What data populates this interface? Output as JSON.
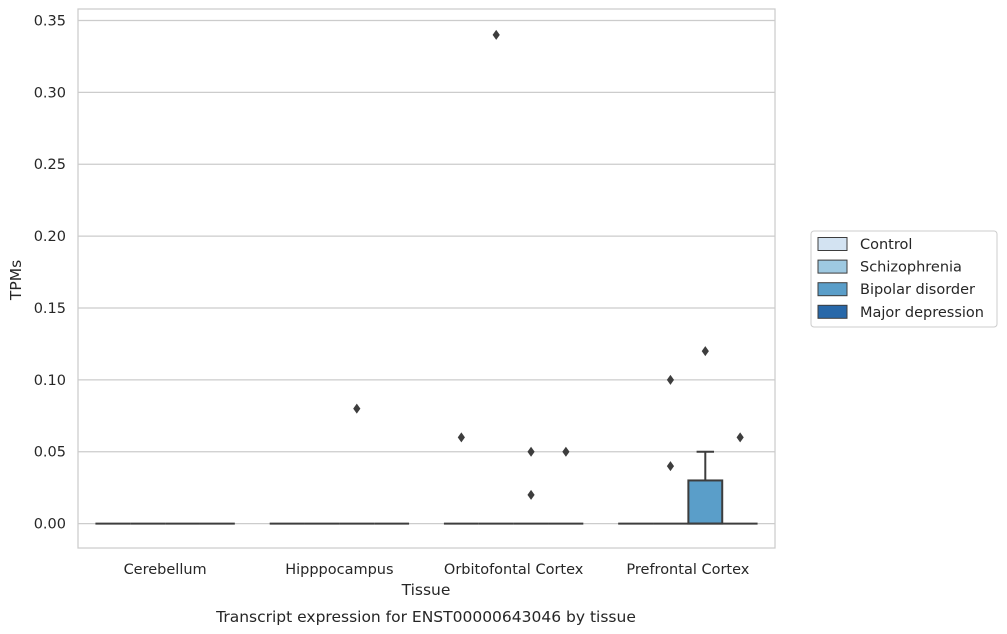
{
  "chart_data": {
    "type": "box",
    "xlabel": "Tissue",
    "ylabel": "TPMs",
    "caption": "Transcript expression for ENST00000643046 by tissue",
    "categories": [
      "Cerebellum",
      "Hipppocampus",
      "Orbitofontal Cortex",
      "Prefrontal Cortex"
    ],
    "ylim": [
      -0.017,
      0.358
    ],
    "yticks": [
      0.0,
      0.05,
      0.1,
      0.15,
      0.2,
      0.25,
      0.3,
      0.35
    ],
    "ytick_labels": [
      "0.00",
      "0.05",
      "0.10",
      "0.15",
      "0.20",
      "0.25",
      "0.30",
      "0.35"
    ],
    "grid": true,
    "legend_position": "right",
    "legend": [
      {
        "name": "Control",
        "color": "#d3e3f2"
      },
      {
        "name": "Schizophrenia",
        "color": "#9ec9e1"
      },
      {
        "name": "Bipolar disorder",
        "color": "#5a9ec9"
      },
      {
        "name": "Major depression",
        "color": "#2868a9"
      }
    ],
    "boxes": [
      {
        "category": "Cerebellum",
        "group": "Control",
        "q1": 0,
        "median": 0,
        "q3": 0,
        "whisker_low": 0,
        "whisker_high": 0,
        "outliers": []
      },
      {
        "category": "Cerebellum",
        "group": "Schizophrenia",
        "q1": 0,
        "median": 0,
        "q3": 0,
        "whisker_low": 0,
        "whisker_high": 0,
        "outliers": []
      },
      {
        "category": "Cerebellum",
        "group": "Bipolar disorder",
        "q1": 0,
        "median": 0,
        "q3": 0,
        "whisker_low": 0,
        "whisker_high": 0,
        "outliers": []
      },
      {
        "category": "Cerebellum",
        "group": "Major depression",
        "q1": 0,
        "median": 0,
        "q3": 0,
        "whisker_low": 0,
        "whisker_high": 0,
        "outliers": []
      },
      {
        "category": "Hipppocampus",
        "group": "Control",
        "q1": 0,
        "median": 0,
        "q3": 0,
        "whisker_low": 0,
        "whisker_high": 0,
        "outliers": []
      },
      {
        "category": "Hipppocampus",
        "group": "Schizophrenia",
        "q1": 0,
        "median": 0,
        "q3": 0,
        "whisker_low": 0,
        "whisker_high": 0,
        "outliers": []
      },
      {
        "category": "Hipppocampus",
        "group": "Bipolar disorder",
        "q1": 0,
        "median": 0,
        "q3": 0,
        "whisker_low": 0,
        "whisker_high": 0,
        "outliers": [
          0.08
        ]
      },
      {
        "category": "Hipppocampus",
        "group": "Major depression",
        "q1": 0,
        "median": 0,
        "q3": 0,
        "whisker_low": 0,
        "whisker_high": 0,
        "outliers": []
      },
      {
        "category": "Orbitofontal Cortex",
        "group": "Control",
        "q1": 0,
        "median": 0,
        "q3": 0,
        "whisker_low": 0,
        "whisker_high": 0,
        "outliers": [
          0.06
        ]
      },
      {
        "category": "Orbitofontal Cortex",
        "group": "Schizophrenia",
        "q1": 0,
        "median": 0,
        "q3": 0,
        "whisker_low": 0,
        "whisker_high": 0,
        "outliers": [
          0.34
        ]
      },
      {
        "category": "Orbitofontal Cortex",
        "group": "Bipolar disorder",
        "q1": 0,
        "median": 0,
        "q3": 0,
        "whisker_low": 0,
        "whisker_high": 0,
        "outliers": [
          0.05,
          0.02
        ]
      },
      {
        "category": "Orbitofontal Cortex",
        "group": "Major depression",
        "q1": 0,
        "median": 0,
        "q3": 0,
        "whisker_low": 0,
        "whisker_high": 0,
        "outliers": [
          0.05
        ]
      },
      {
        "category": "Prefrontal Cortex",
        "group": "Control",
        "q1": 0,
        "median": 0,
        "q3": 0,
        "whisker_low": 0,
        "whisker_high": 0,
        "outliers": []
      },
      {
        "category": "Prefrontal Cortex",
        "group": "Schizophrenia",
        "q1": 0,
        "median": 0,
        "q3": 0,
        "whisker_low": 0,
        "whisker_high": 0,
        "outliers": [
          0.1,
          0.04
        ]
      },
      {
        "category": "Prefrontal Cortex",
        "group": "Bipolar disorder",
        "q1": 0,
        "median": 0,
        "q3": 0.03,
        "whisker_low": 0,
        "whisker_high": 0.05,
        "outliers": [
          0.12
        ]
      },
      {
        "category": "Prefrontal Cortex",
        "group": "Major depression",
        "q1": 0,
        "median": 0,
        "q3": 0,
        "whisker_low": 0,
        "whisker_high": 0,
        "outliers": [
          0.06
        ]
      }
    ]
  }
}
